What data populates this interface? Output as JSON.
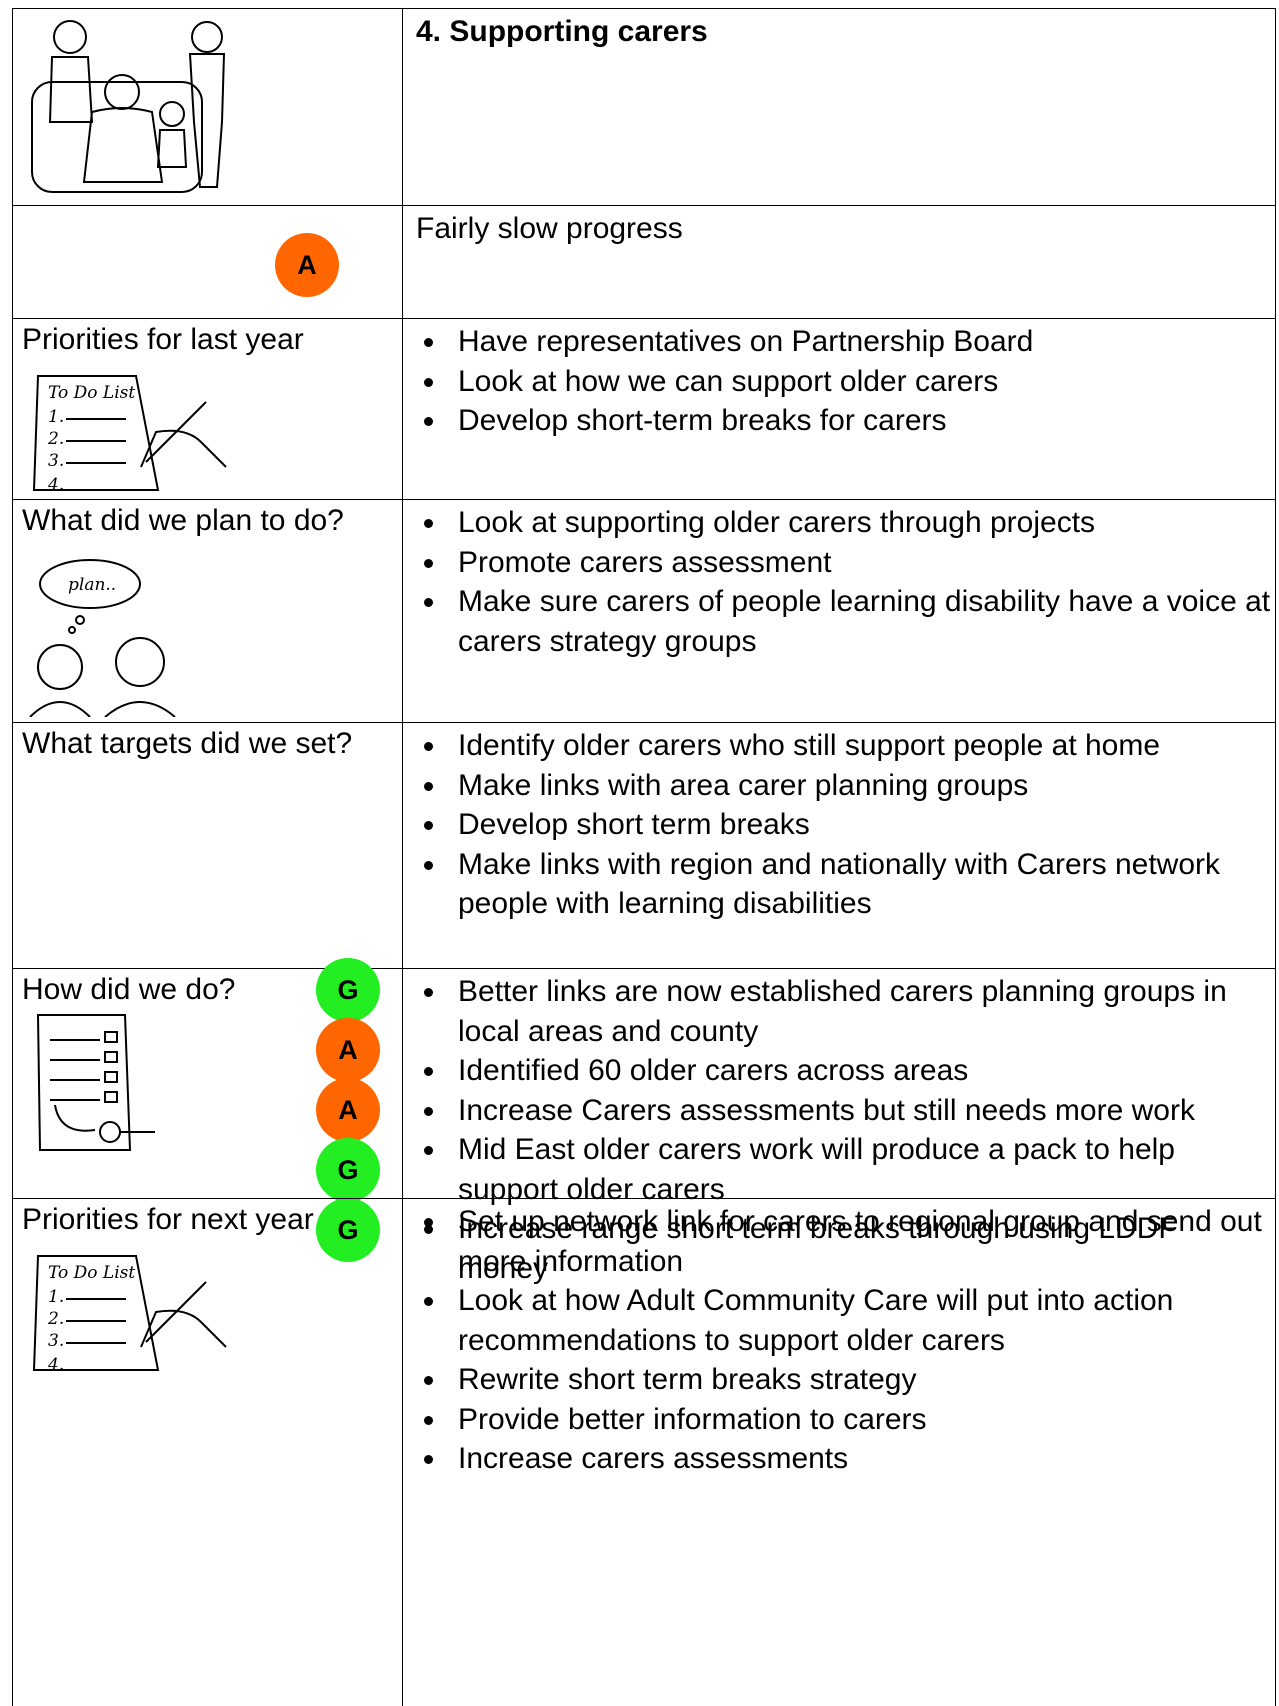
{
  "header": {
    "title": "4. Supporting carers"
  },
  "status": {
    "badge": "A",
    "text": "Fairly slow progress"
  },
  "sections": [
    {
      "heading": "Priorities for last year",
      "items": [
        "Have representatives on Partnership Board",
        "Look at how we can support older carers",
        "Develop short-term breaks for carers"
      ]
    },
    {
      "heading": "What did we plan to do?",
      "items": [
        "Look at supporting older carers through projects",
        "Promote carers assessment",
        "Make sure carers of people learning disability have a voice at carers strategy groups"
      ]
    },
    {
      "heading": "What targets did we set?",
      "items": [
        "Identify older carers who still support people at home",
        "Make links with area carer planning groups",
        "Develop short term breaks",
        "Make links with region and nationally with Carers network people with learning disabilities"
      ]
    },
    {
      "heading": "How did we do?",
      "badges": [
        "G",
        "A",
        "A",
        "G",
        "G"
      ],
      "items": [
        "Better links are now established carers planning groups in local areas and county",
        "Identified 60 older carers across areas",
        "Increase Carers assessments but still needs more work",
        "Mid East older carers work will produce a pack to help support older carers",
        "Increase range short term breaks through using LDDF money"
      ]
    },
    {
      "heading": "Priorities for next year",
      "items": [
        "Set up network link for carers to regional group and send out more information",
        "Look at how Adult Community Care will put into action recommendations to support older carers",
        "Rewrite short term breaks strategy",
        "Provide better information to carers",
        "Increase carers assessments"
      ]
    }
  ]
}
